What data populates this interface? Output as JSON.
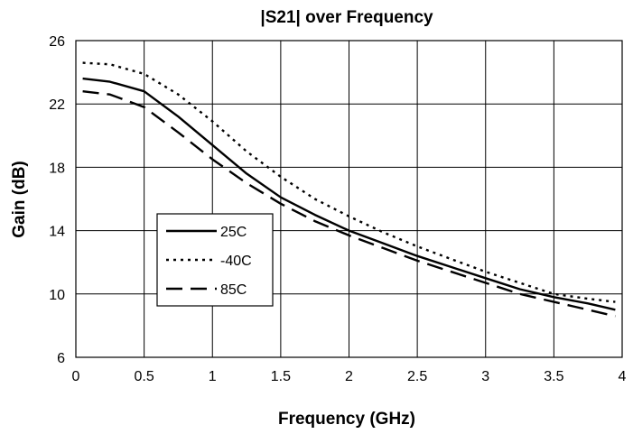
{
  "chart_data": {
    "type": "line",
    "title": "|S21| over Frequency",
    "xlabel": "Frequency (GHz)",
    "ylabel": "Gain (dB)",
    "xlim": [
      0,
      4
    ],
    "ylim": [
      6,
      26
    ],
    "xticks": [
      "0",
      "0.5",
      "1",
      "1.5",
      "2",
      "2.5",
      "3",
      "3.5",
      "4"
    ],
    "yticks": [
      "6",
      "10",
      "14",
      "18",
      "22",
      "26"
    ],
    "grid": true,
    "legend_placement": "center-left",
    "x": [
      0.05,
      0.25,
      0.5,
      0.75,
      1.0,
      1.25,
      1.5,
      1.75,
      2.0,
      2.25,
      2.5,
      2.75,
      3.0,
      3.25,
      3.5,
      3.75,
      3.95
    ],
    "series": [
      {
        "name": "25C",
        "style": "solid",
        "values": [
          23.6,
          23.4,
          22.8,
          21.2,
          19.4,
          17.6,
          16.1,
          15.0,
          14.0,
          13.2,
          12.4,
          11.7,
          11.0,
          10.3,
          9.8,
          9.4,
          9.0
        ]
      },
      {
        "name": "-40C",
        "style": "dotted",
        "values": [
          24.6,
          24.5,
          23.9,
          22.6,
          20.9,
          19.0,
          17.4,
          16.0,
          14.9,
          13.9,
          13.0,
          12.2,
          11.4,
          10.7,
          10.0,
          9.7,
          9.5
        ]
      },
      {
        "name": "85C",
        "style": "dashed",
        "values": [
          22.8,
          22.6,
          21.8,
          20.2,
          18.5,
          17.0,
          15.7,
          14.6,
          13.7,
          12.9,
          12.1,
          11.4,
          10.7,
          10.0,
          9.5,
          9.0,
          8.6
        ]
      }
    ]
  }
}
